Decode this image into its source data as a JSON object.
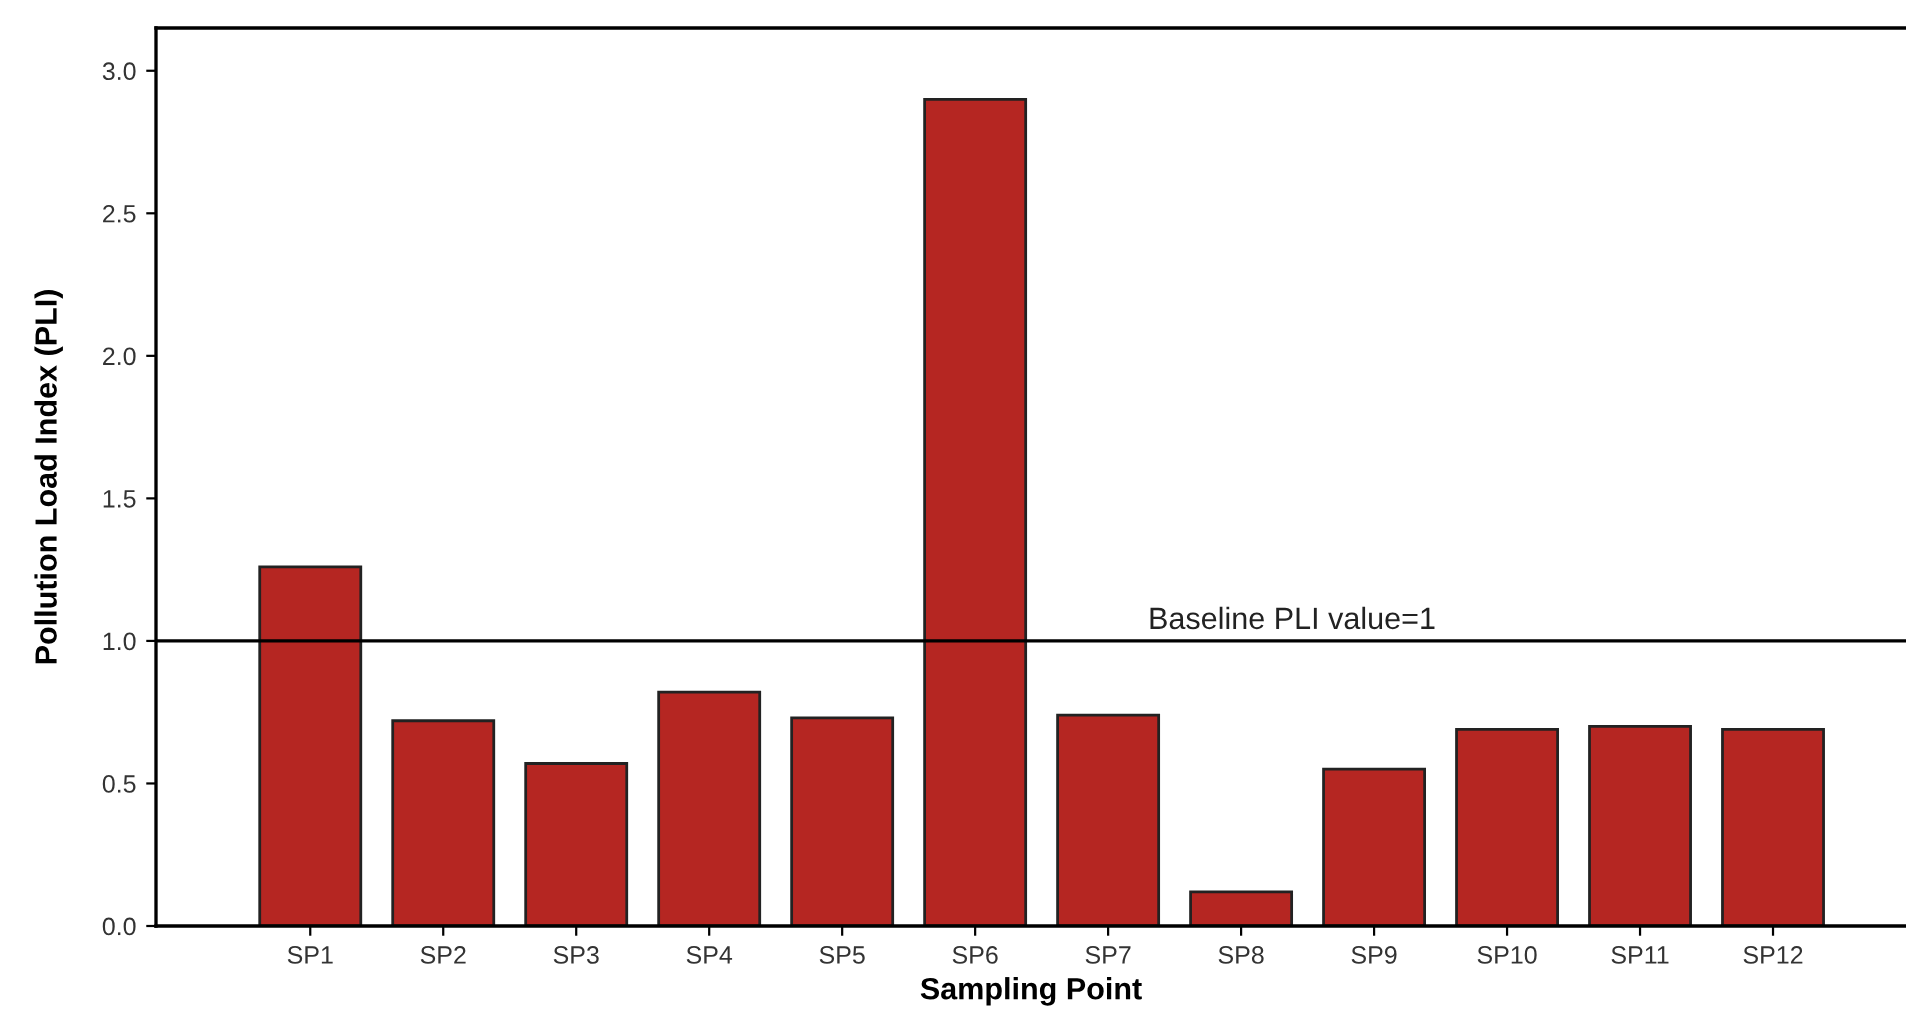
{
  "chart_data": {
    "type": "bar",
    "xlabel": "Sampling Point",
    "ylabel": "Pollution Load Index (PLI)",
    "categories": [
      "SP1",
      "SP2",
      "SP3",
      "SP4",
      "SP5",
      "SP6",
      "SP7",
      "SP8",
      "SP9",
      "SP10",
      "SP11",
      "SP12"
    ],
    "values": [
      1.26,
      0.72,
      0.57,
      0.82,
      0.73,
      2.9,
      0.74,
      0.12,
      0.55,
      0.69,
      0.7,
      0.69
    ],
    "color": "#b52622",
    "ylim": [
      0,
      3.15
    ],
    "yticks": [
      {
        "value": 0,
        "label": "0.0"
      },
      {
        "value": 0.5,
        "label": "0.5"
      },
      {
        "value": 1,
        "label": "1.0"
      },
      {
        "value": 1.5,
        "label": "1.5"
      },
      {
        "value": 2,
        "label": "2.0"
      },
      {
        "value": 2.5,
        "label": "2.5"
      },
      {
        "value": 3,
        "label": "3.0"
      }
    ],
    "ref_lines": [
      {
        "axis": "y",
        "value": 1,
        "label": "Baseline PLI value=1",
        "color": "#000000"
      }
    ],
    "grid": false,
    "legend": false
  }
}
